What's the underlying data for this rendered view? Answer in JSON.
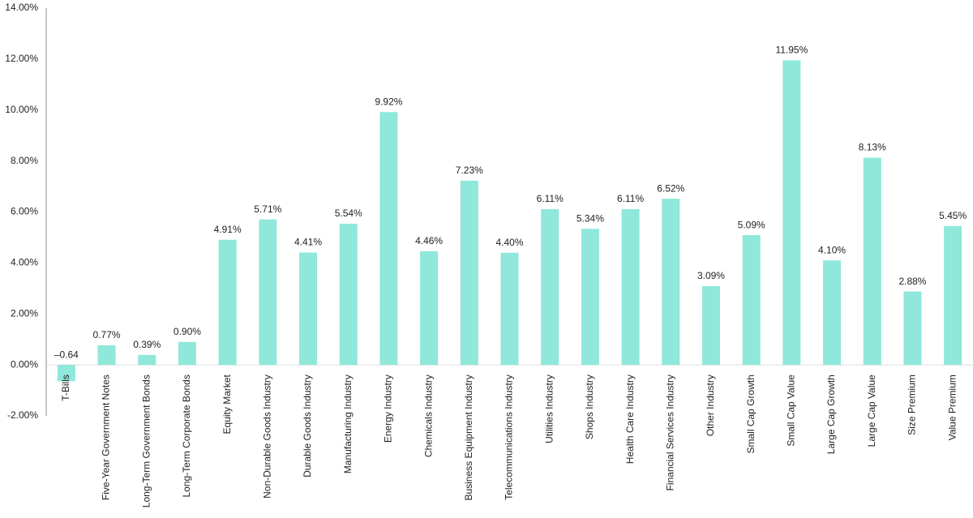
{
  "chart_data": {
    "type": "bar",
    "categories": [
      "T-Bills",
      "Five-Year Government Notes",
      "Long-Term Government Bonds",
      "Long-Term Corporate Bonds",
      "Equity Market",
      "Non-Durable Goods Industry",
      "Durable Goods Industry",
      "Manufacturing Industry",
      "Energy Industry",
      "Chemicals Industry",
      "Business Equipment Industry",
      "Telecommunications Industry",
      "Utilities Industry",
      "Shops Industry",
      "Health Care Industry",
      "Financial Services Industry",
      "Other Industry",
      "Small Cap Growth",
      "Small Cap Value",
      "Large Cap Growth",
      "Large Cap Value",
      "Size Premium",
      "Value Premium"
    ],
    "values": [
      -0.64,
      0.77,
      0.39,
      0.9,
      4.91,
      5.71,
      4.41,
      5.54,
      9.92,
      4.46,
      7.23,
      4.4,
      6.11,
      5.34,
      6.11,
      6.52,
      3.09,
      5.09,
      11.95,
      4.1,
      8.13,
      2.88,
      5.45
    ],
    "value_labels": [
      "–0.64",
      "0.77%",
      "0.39%",
      "0.90%",
      "4.91%",
      "5.71%",
      "4.41%",
      "5.54%",
      "9.92%",
      "4.46%",
      "7.23%",
      "4.40%",
      "6.11%",
      "5.34%",
      "6.11%",
      "6.52%",
      "3.09%",
      "5.09%",
      "11.95%",
      "4.10%",
      "8.13%",
      "2.88%",
      "5.45%"
    ],
    "color": "#8fe8da",
    "ylim": [
      -2,
      14
    ],
    "yticks": [
      {
        "value": -2,
        "label": "-2.00%"
      },
      {
        "value": 0,
        "label": "0.00%"
      },
      {
        "value": 2,
        "label": "2.00%"
      },
      {
        "value": 4,
        "label": "4.00%"
      },
      {
        "value": 6,
        "label": "6.00%"
      },
      {
        "value": 8,
        "label": "8.00%"
      },
      {
        "value": 10,
        "label": "10.00%"
      },
      {
        "value": 12,
        "label": "12.00%"
      },
      {
        "value": 14,
        "label": "14.00%"
      }
    ],
    "grid": false
  }
}
